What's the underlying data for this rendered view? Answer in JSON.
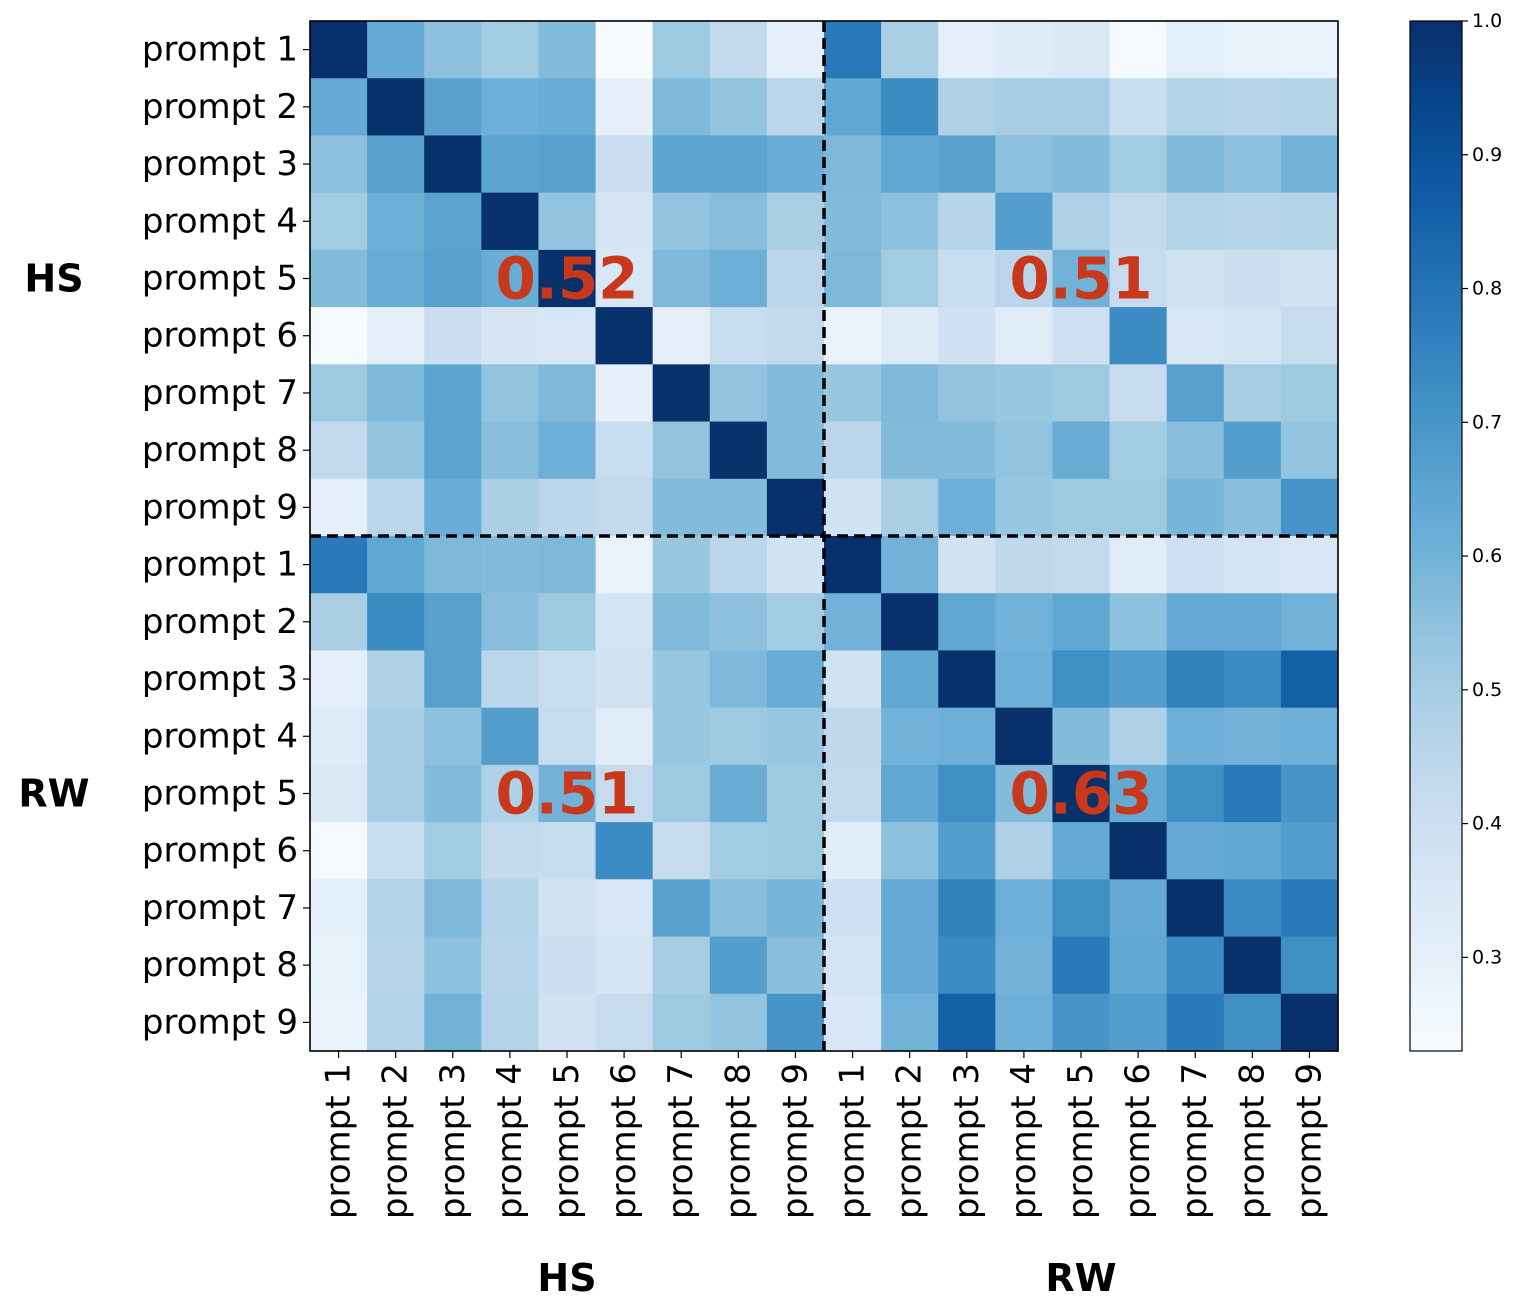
{
  "chart_data": {
    "type": "heatmap",
    "row_labels": [
      "prompt 1",
      "prompt 2",
      "prompt 3",
      "prompt 4",
      "prompt 5",
      "prompt 6",
      "prompt 7",
      "prompt 8",
      "prompt 9",
      "prompt 1",
      "prompt 2",
      "prompt 3",
      "prompt 4",
      "prompt 5",
      "prompt 6",
      "prompt 7",
      "prompt 8",
      "prompt 9"
    ],
    "col_labels": [
      "prompt 1",
      "prompt 2",
      "prompt 3",
      "prompt 4",
      "prompt 5",
      "prompt 6",
      "prompt 7",
      "prompt 8",
      "prompt 9",
      "prompt 1",
      "prompt 2",
      "prompt 3",
      "prompt 4",
      "prompt 5",
      "prompt 6",
      "prompt 7",
      "prompt 8",
      "prompt 9"
    ],
    "group_labels": {
      "rows": [
        "HS",
        "RW"
      ],
      "cols": [
        "HS",
        "RW"
      ]
    },
    "values": [
      [
        1.0,
        0.63,
        0.55,
        0.51,
        0.57,
        0.23,
        0.52,
        0.43,
        0.3,
        0.78,
        0.49,
        0.3,
        0.33,
        0.34,
        0.24,
        0.31,
        0.29,
        0.28
      ],
      [
        0.63,
        1.0,
        0.66,
        0.61,
        0.62,
        0.3,
        0.58,
        0.54,
        0.45,
        0.64,
        0.73,
        0.48,
        0.5,
        0.5,
        0.41,
        0.47,
        0.46,
        0.47
      ],
      [
        0.55,
        0.66,
        1.0,
        0.65,
        0.66,
        0.4,
        0.65,
        0.65,
        0.62,
        0.58,
        0.64,
        0.66,
        0.55,
        0.57,
        0.51,
        0.58,
        0.55,
        0.6
      ],
      [
        0.51,
        0.61,
        0.65,
        1.0,
        0.54,
        0.36,
        0.54,
        0.56,
        0.49,
        0.57,
        0.55,
        0.46,
        0.67,
        0.48,
        0.43,
        0.47,
        0.46,
        0.47
      ],
      [
        0.57,
        0.62,
        0.66,
        0.62,
        1.0,
        0.35,
        0.58,
        0.61,
        0.45,
        0.58,
        0.51,
        0.41,
        0.45,
        0.6,
        0.42,
        0.38,
        0.4,
        0.38
      ],
      [
        0.23,
        0.3,
        0.4,
        0.36,
        0.35,
        1.0,
        0.3,
        0.41,
        0.43,
        0.28,
        0.33,
        0.39,
        0.32,
        0.39,
        0.73,
        0.35,
        0.37,
        0.42
      ],
      [
        0.52,
        0.58,
        0.65,
        0.54,
        0.58,
        0.3,
        1.0,
        0.54,
        0.57,
        0.53,
        0.58,
        0.54,
        0.53,
        0.52,
        0.42,
        0.66,
        0.5,
        0.52
      ],
      [
        0.43,
        0.54,
        0.65,
        0.56,
        0.61,
        0.41,
        0.54,
        1.0,
        0.57,
        0.45,
        0.57,
        0.57,
        0.54,
        0.62,
        0.51,
        0.56,
        0.67,
        0.54
      ],
      [
        0.3,
        0.45,
        0.62,
        0.49,
        0.45,
        0.43,
        0.57,
        0.57,
        1.0,
        0.38,
        0.49,
        0.61,
        0.53,
        0.52,
        0.52,
        0.59,
        0.56,
        0.7
      ],
      [
        0.78,
        0.64,
        0.58,
        0.57,
        0.58,
        0.28,
        0.53,
        0.45,
        0.38,
        1.0,
        0.6,
        0.38,
        0.44,
        0.43,
        0.32,
        0.39,
        0.37,
        0.35
      ],
      [
        0.49,
        0.73,
        0.66,
        0.56,
        0.52,
        0.37,
        0.57,
        0.55,
        0.51,
        0.6,
        1.0,
        0.64,
        0.6,
        0.64,
        0.55,
        0.63,
        0.63,
        0.6
      ],
      [
        0.3,
        0.48,
        0.66,
        0.45,
        0.41,
        0.38,
        0.53,
        0.58,
        0.62,
        0.38,
        0.64,
        1.0,
        0.61,
        0.72,
        0.67,
        0.76,
        0.73,
        0.86
      ],
      [
        0.33,
        0.5,
        0.55,
        0.67,
        0.42,
        0.32,
        0.53,
        0.52,
        0.53,
        0.44,
        0.6,
        0.61,
        1.0,
        0.57,
        0.48,
        0.61,
        0.6,
        0.61
      ],
      [
        0.34,
        0.5,
        0.57,
        0.48,
        0.6,
        0.42,
        0.52,
        0.62,
        0.52,
        0.43,
        0.64,
        0.72,
        0.57,
        1.0,
        0.63,
        0.72,
        0.78,
        0.7
      ],
      [
        0.24,
        0.41,
        0.51,
        0.43,
        0.42,
        0.73,
        0.42,
        0.51,
        0.52,
        0.32,
        0.55,
        0.67,
        0.48,
        0.63,
        1.0,
        0.63,
        0.64,
        0.67
      ],
      [
        0.31,
        0.47,
        0.58,
        0.47,
        0.38,
        0.35,
        0.66,
        0.56,
        0.59,
        0.39,
        0.63,
        0.76,
        0.61,
        0.72,
        0.63,
        1.0,
        0.73,
        0.78
      ],
      [
        0.29,
        0.46,
        0.55,
        0.46,
        0.4,
        0.37,
        0.5,
        0.67,
        0.56,
        0.37,
        0.63,
        0.73,
        0.6,
        0.78,
        0.64,
        0.73,
        1.0,
        0.72
      ],
      [
        0.28,
        0.47,
        0.6,
        0.47,
        0.38,
        0.42,
        0.52,
        0.54,
        0.7,
        0.35,
        0.6,
        0.86,
        0.61,
        0.7,
        0.67,
        0.78,
        0.72,
        1.0
      ]
    ],
    "block_annotations": [
      {
        "rows": "HS",
        "cols": "HS",
        "text": "0.52"
      },
      {
        "rows": "HS",
        "cols": "RW",
        "text": "0.51"
      },
      {
        "rows": "RW",
        "cols": "HS",
        "text": "0.51"
      },
      {
        "rows": "RW",
        "cols": "RW",
        "text": "0.63"
      }
    ],
    "annotation_color": "#c8381c",
    "colormap": "Blues",
    "colorbar": {
      "range": [
        0.23,
        1.0
      ],
      "ticks": [
        0.3,
        0.4,
        0.5,
        0.6,
        0.7,
        0.8,
        0.9,
        1.0
      ],
      "tick_labels": [
        "0.3",
        "0.4",
        "0.5",
        "0.6",
        "0.7",
        "0.8",
        "0.9",
        "1.0"
      ]
    }
  }
}
